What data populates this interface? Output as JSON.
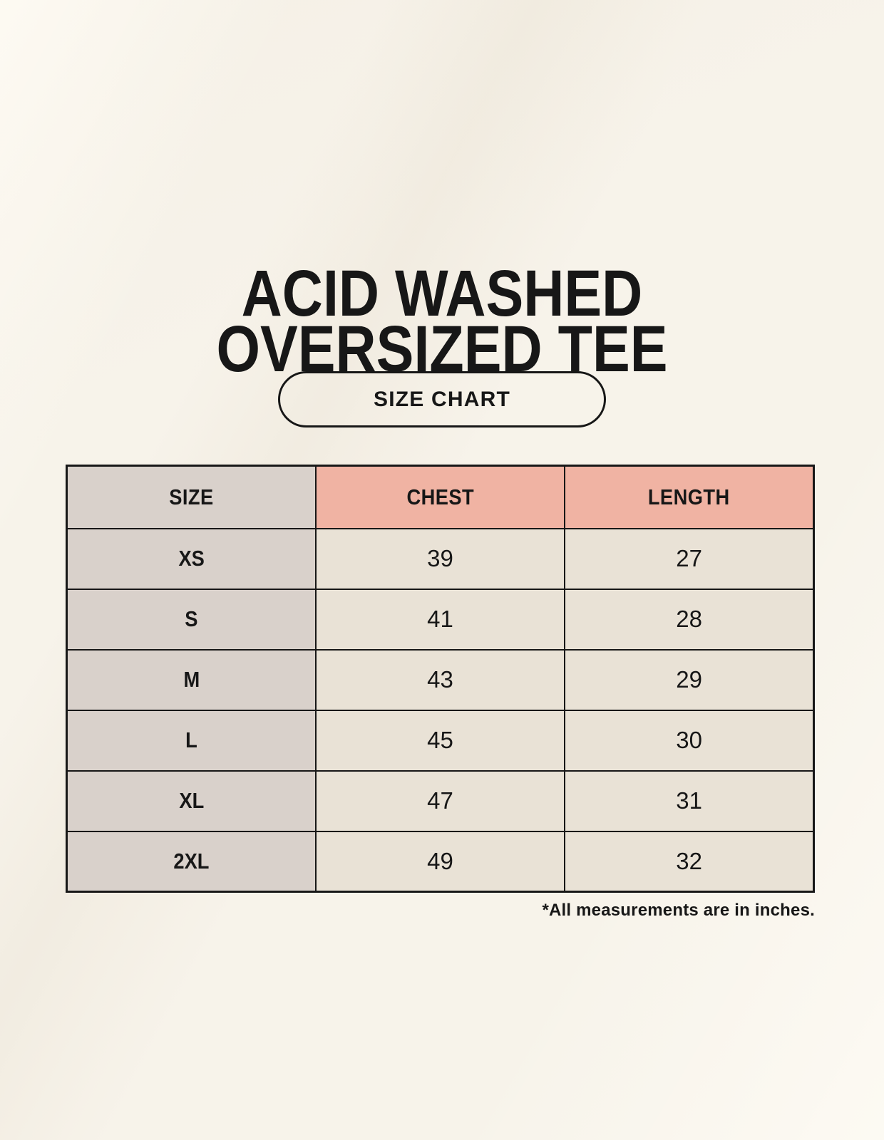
{
  "header": {
    "title_line1": "ACID WASHED",
    "title_line2": "OVERSIZED TEE"
  },
  "chart_data": {
    "type": "table",
    "title": "ACID WASHED OVERSIZED TEE",
    "subtitle": "SIZE CHART",
    "columns": [
      "SIZE",
      "CHEST",
      "LENGTH"
    ],
    "rows": [
      [
        "XS",
        "39",
        "27"
      ],
      [
        "S",
        "41",
        "28"
      ],
      [
        "M",
        "43",
        "29"
      ],
      [
        "L",
        "45",
        "30"
      ],
      [
        "XL",
        "47",
        "31"
      ],
      [
        "2XL",
        "49",
        "32"
      ]
    ],
    "units": "inches",
    "note": "*All measurements are in inches."
  },
  "colors": {
    "page-bg": "#f7f3ea",
    "size-col-bg": "#d9d1cb",
    "measure-header-bg": "#f0b3a3",
    "cell-bg": "#e9e2d6",
    "border": "#171717",
    "text": "#171717"
  }
}
